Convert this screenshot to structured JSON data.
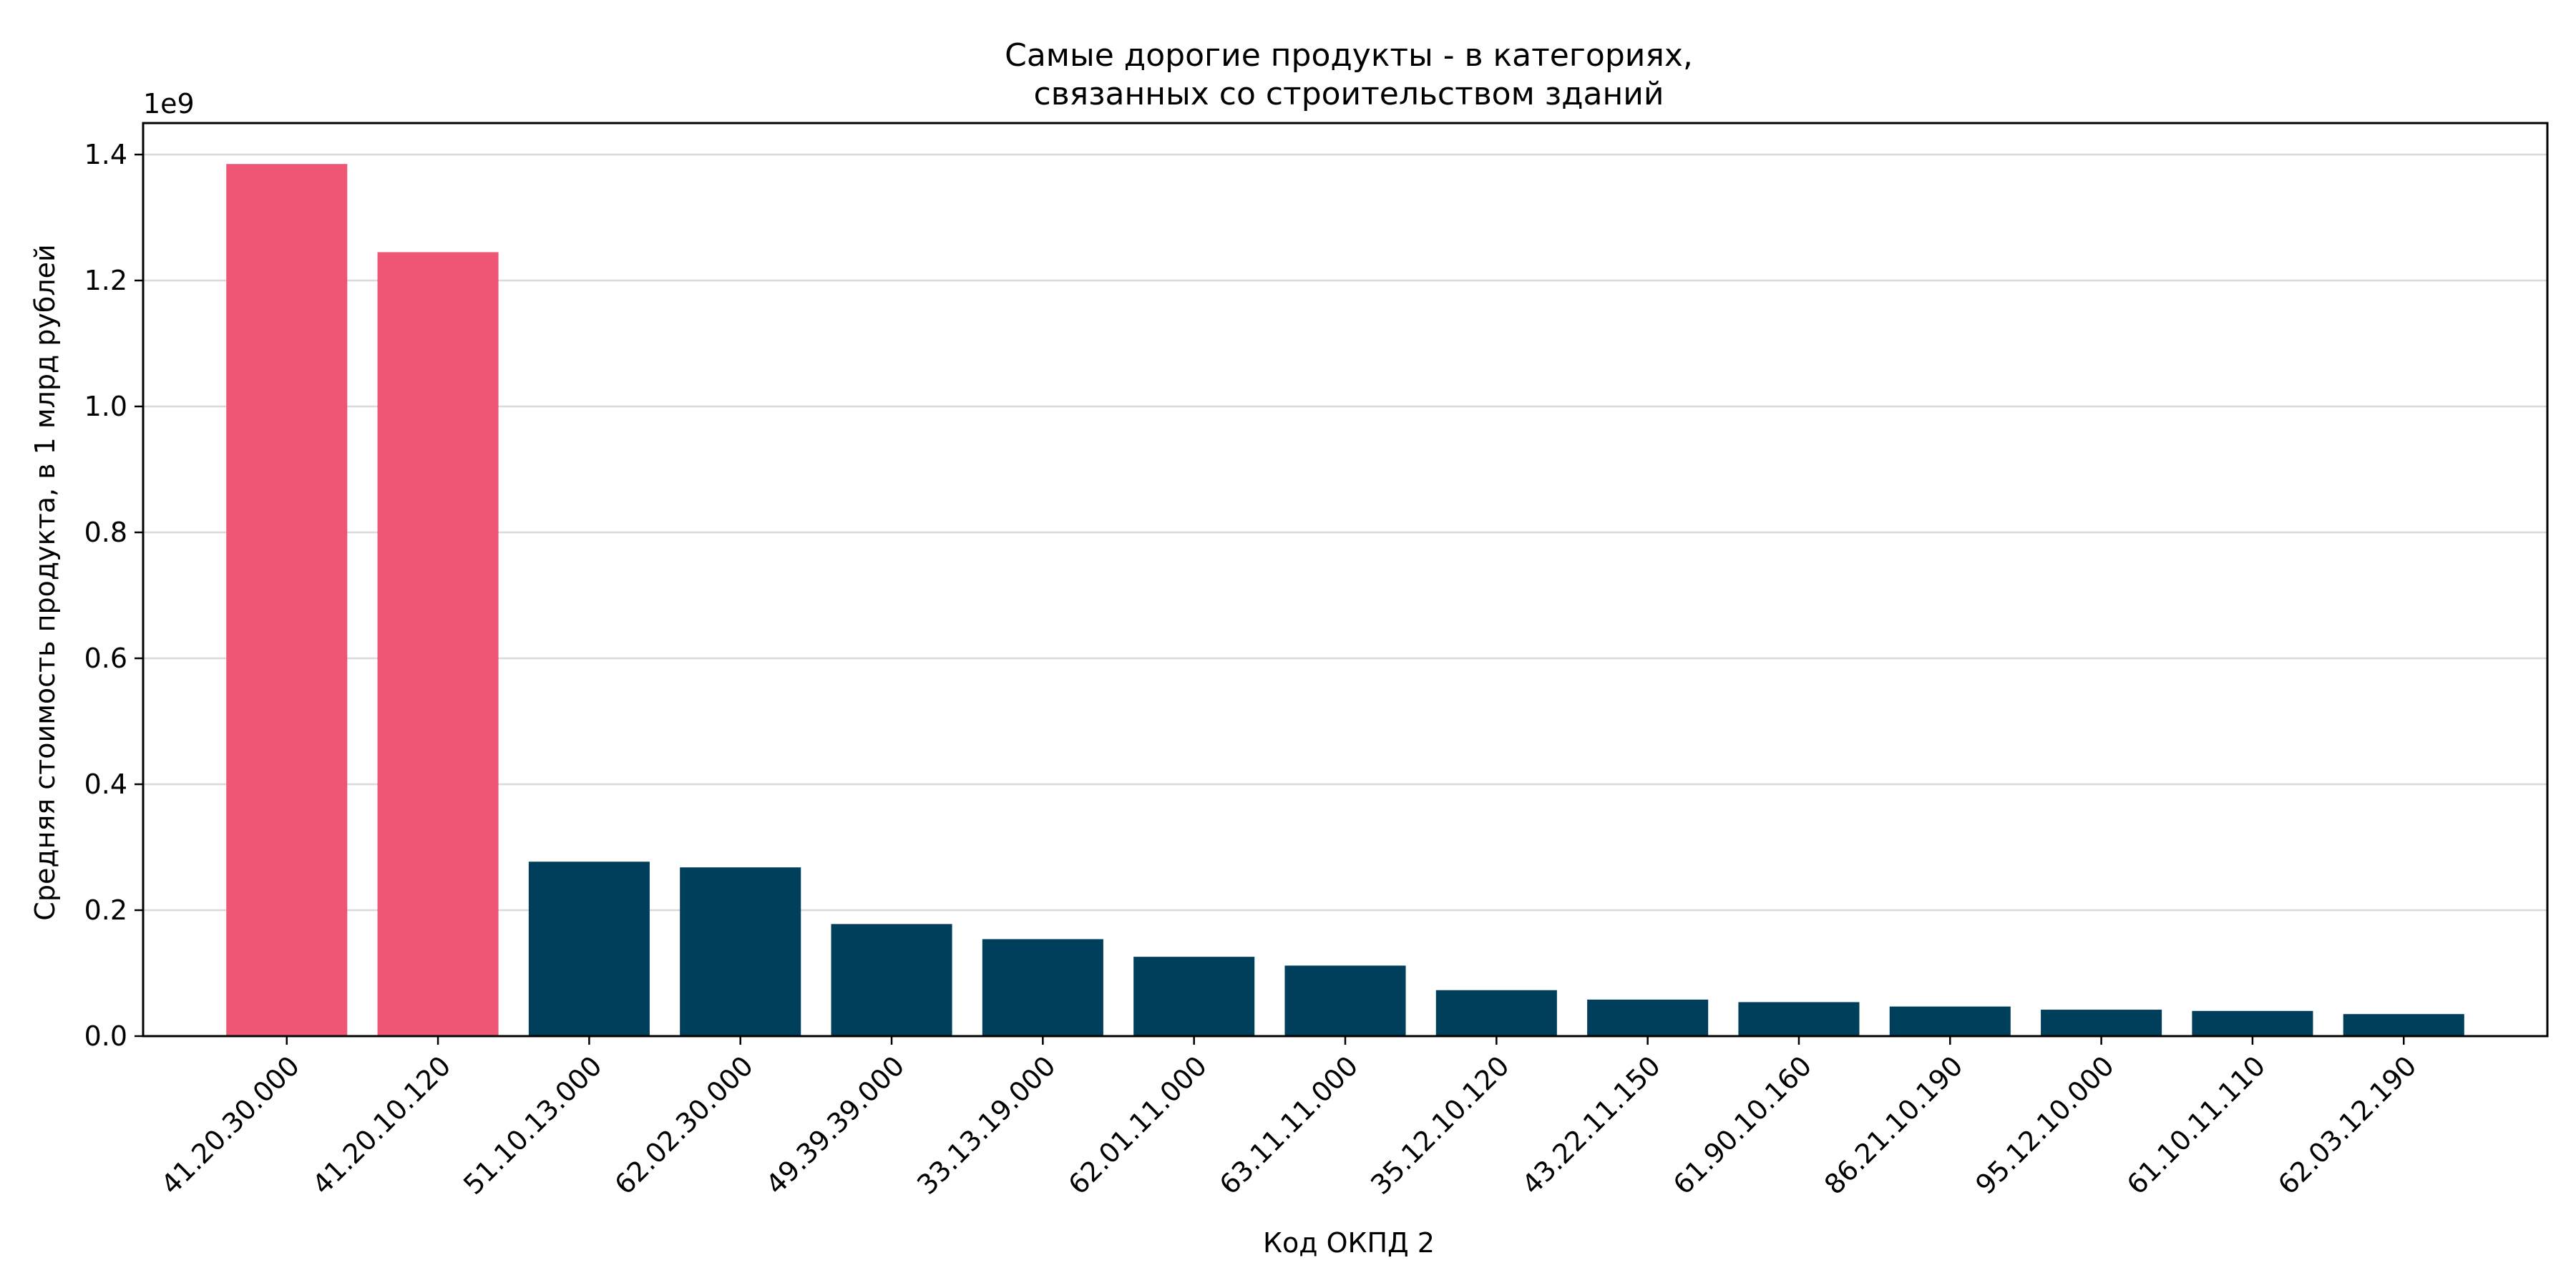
{
  "chart_data": {
    "type": "bar",
    "title": [
      "Самые дорогие продукты - в категориях,",
      "связанных со строительством зданий"
    ],
    "xlabel": "Код ОКПД 2",
    "ylabel": "Средняя стоимость продукта, в 1 млрд рублей",
    "y_offset_label": "1e9",
    "ylim": [
      0,
      1.45
    ],
    "y_ticks": [
      0,
      0.2,
      0.4,
      0.6,
      0.8,
      1.0,
      1.2,
      1.4
    ],
    "y_tick_labels": [
      "0.0",
      "0.2",
      "0.4",
      "0.6",
      "0.8",
      "1.0",
      "1.2",
      "1.4"
    ],
    "grid": "horizontal",
    "categories": [
      "41.20.30.000",
      "41.20.10.120",
      "51.10.13.000",
      "62.02.30.000",
      "49.39.39.000",
      "33.13.19.000",
      "62.01.11.000",
      "63.11.11.000",
      "35.12.10.120",
      "43.22.11.150",
      "61.90.10.160",
      "86.21.10.190",
      "95.12.10.000",
      "61.10.11.110",
      "62.03.12.190"
    ],
    "values": [
      1.385,
      1.245,
      0.277,
      0.268,
      0.178,
      0.154,
      0.126,
      0.112,
      0.073,
      0.058,
      0.054,
      0.047,
      0.042,
      0.04,
      0.035
    ],
    "colors": [
      "#ef5675",
      "#ef5675",
      "#003f5c",
      "#003f5c",
      "#003f5c",
      "#003f5c",
      "#003f5c",
      "#003f5c",
      "#003f5c",
      "#003f5c",
      "#003f5c",
      "#003f5c",
      "#003f5c",
      "#003f5c",
      "#003f5c"
    ]
  }
}
